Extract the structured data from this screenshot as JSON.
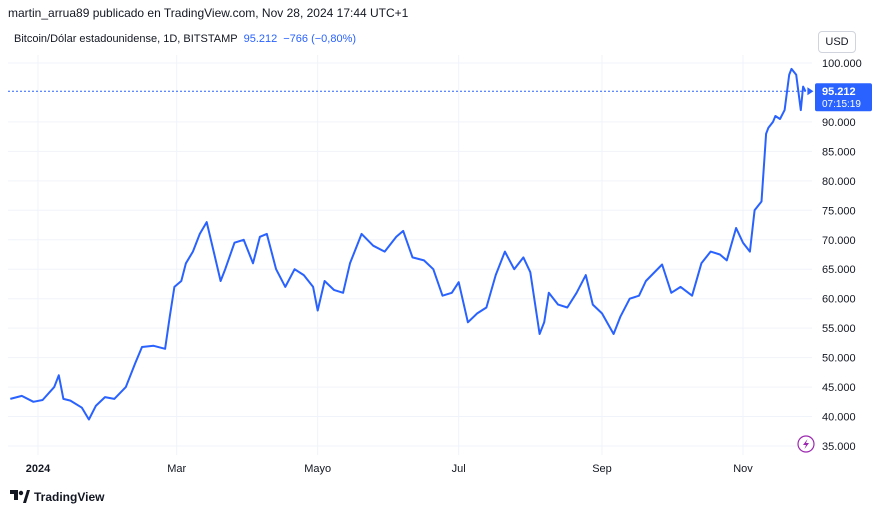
{
  "header": {
    "publisher": "martin_arrua89 publicado en TradingView.com, Nov 28, 2024 17:44 UTC+1"
  },
  "symbol": {
    "name": "Bitcoin/Dólar estadounidense, 1D, BITSTAMP",
    "price": "95.212",
    "change": "−766 (−0,80%)"
  },
  "currency_button": "USD",
  "price_badge": {
    "price": "95.212",
    "countdown": "07:15:19"
  },
  "footer": {
    "brand": "TradingView"
  },
  "colors": {
    "line": "#2962ff",
    "grid": "#f0f3fa",
    "text": "#131722",
    "event_icon": "#9c27b0"
  },
  "icons": {
    "event": "lightning-icon",
    "brand": "tradingview-logo"
  },
  "chart_data": {
    "type": "line",
    "title": "Bitcoin/Dólar estadounidense, 1D, BITSTAMP",
    "xlabel": "",
    "ylabel": "",
    "ylim": [
      33500,
      104000
    ],
    "grid": true,
    "x_ticks": [
      {
        "label": "2024",
        "date": "2024-01-01"
      },
      {
        "label": "Mar",
        "date": "2024-03-01"
      },
      {
        "label": "Mayo",
        "date": "2024-05-01"
      },
      {
        "label": "Jul",
        "date": "2024-07-01"
      },
      {
        "label": "Sep",
        "date": "2024-09-01"
      },
      {
        "label": "Nov",
        "date": "2024-11-01"
      }
    ],
    "y_ticks": [
      {
        "label": "35.000",
        "value": 35000
      },
      {
        "label": "40.000",
        "value": 40000
      },
      {
        "label": "45.000",
        "value": 45000
      },
      {
        "label": "50.000",
        "value": 50000
      },
      {
        "label": "55.000",
        "value": 55000
      },
      {
        "label": "60.000",
        "value": 60000
      },
      {
        "label": "65.000",
        "value": 65000
      },
      {
        "label": "70.000",
        "value": 70000
      },
      {
        "label": "75.000",
        "value": 75000
      },
      {
        "label": "80.000",
        "value": 80000
      },
      {
        "label": "85.000",
        "value": 85000
      },
      {
        "label": "90.000",
        "value": 90000
      },
      {
        "label": "100.000",
        "value": 100000
      }
    ],
    "last_price": 95212,
    "series": [
      {
        "points": [
          [
            "2023-12-20",
            43000
          ],
          [
            "2023-12-25",
            43500
          ],
          [
            "2023-12-30",
            42500
          ],
          [
            "2024-01-03",
            42800
          ],
          [
            "2024-01-08",
            45000
          ],
          [
            "2024-01-10",
            47000
          ],
          [
            "2024-01-12",
            43000
          ],
          [
            "2024-01-15",
            42700
          ],
          [
            "2024-01-20",
            41500
          ],
          [
            "2024-01-23",
            39500
          ],
          [
            "2024-01-26",
            41800
          ],
          [
            "2024-01-30",
            43300
          ],
          [
            "2024-02-03",
            43000
          ],
          [
            "2024-02-08",
            45000
          ],
          [
            "2024-02-12",
            49000
          ],
          [
            "2024-02-15",
            51800
          ],
          [
            "2024-02-20",
            52000
          ],
          [
            "2024-02-25",
            51500
          ],
          [
            "2024-02-27",
            57000
          ],
          [
            "2024-02-29",
            62000
          ],
          [
            "2024-03-03",
            63000
          ],
          [
            "2024-03-05",
            66000
          ],
          [
            "2024-03-08",
            68000
          ],
          [
            "2024-03-11",
            71000
          ],
          [
            "2024-03-14",
            73000
          ],
          [
            "2024-03-17",
            68000
          ],
          [
            "2024-03-20",
            63000
          ],
          [
            "2024-03-22",
            65000
          ],
          [
            "2024-03-26",
            69500
          ],
          [
            "2024-03-30",
            70000
          ],
          [
            "2024-04-03",
            66000
          ],
          [
            "2024-04-06",
            70500
          ],
          [
            "2024-04-09",
            71000
          ],
          [
            "2024-04-13",
            65000
          ],
          [
            "2024-04-17",
            62000
          ],
          [
            "2024-04-21",
            65000
          ],
          [
            "2024-04-25",
            64000
          ],
          [
            "2024-04-29",
            62000
          ],
          [
            "2024-05-01",
            58000
          ],
          [
            "2024-05-04",
            63000
          ],
          [
            "2024-05-08",
            61500
          ],
          [
            "2024-05-12",
            61000
          ],
          [
            "2024-05-15",
            66000
          ],
          [
            "2024-05-20",
            71000
          ],
          [
            "2024-05-25",
            69000
          ],
          [
            "2024-05-30",
            68000
          ],
          [
            "2024-06-04",
            70500
          ],
          [
            "2024-06-07",
            71500
          ],
          [
            "2024-06-11",
            67000
          ],
          [
            "2024-06-16",
            66500
          ],
          [
            "2024-06-20",
            65000
          ],
          [
            "2024-06-24",
            60500
          ],
          [
            "2024-06-28",
            61000
          ],
          [
            "2024-07-01",
            62800
          ],
          [
            "2024-07-05",
            56000
          ],
          [
            "2024-07-09",
            57500
          ],
          [
            "2024-07-13",
            58500
          ],
          [
            "2024-07-17",
            64000
          ],
          [
            "2024-07-21",
            68000
          ],
          [
            "2024-07-25",
            65000
          ],
          [
            "2024-07-29",
            67000
          ],
          [
            "2024-08-01",
            64500
          ],
          [
            "2024-08-05",
            54000
          ],
          [
            "2024-08-07",
            56000
          ],
          [
            "2024-08-09",
            61000
          ],
          [
            "2024-08-13",
            59000
          ],
          [
            "2024-08-17",
            58500
          ],
          [
            "2024-08-21",
            61000
          ],
          [
            "2024-08-25",
            64000
          ],
          [
            "2024-08-28",
            59000
          ],
          [
            "2024-09-01",
            57500
          ],
          [
            "2024-09-06",
            54000
          ],
          [
            "2024-09-09",
            57000
          ],
          [
            "2024-09-13",
            60000
          ],
          [
            "2024-09-17",
            60500
          ],
          [
            "2024-09-20",
            63000
          ],
          [
            "2024-09-27",
            65800
          ],
          [
            "2024-10-01",
            61000
          ],
          [
            "2024-10-05",
            62000
          ],
          [
            "2024-10-10",
            60500
          ],
          [
            "2024-10-14",
            66000
          ],
          [
            "2024-10-18",
            68000
          ],
          [
            "2024-10-22",
            67500
          ],
          [
            "2024-10-25",
            66500
          ],
          [
            "2024-10-29",
            72000
          ],
          [
            "2024-11-01",
            69500
          ],
          [
            "2024-11-04",
            68000
          ],
          [
            "2024-11-06",
            75000
          ],
          [
            "2024-11-09",
            76500
          ],
          [
            "2024-11-11",
            88000
          ],
          [
            "2024-11-12",
            89000
          ],
          [
            "2024-11-14",
            90000
          ],
          [
            "2024-11-15",
            91000
          ],
          [
            "2024-11-17",
            90500
          ],
          [
            "2024-11-19",
            92000
          ],
          [
            "2024-11-21",
            98000
          ],
          [
            "2024-11-22",
            99000
          ],
          [
            "2024-11-24",
            98000
          ],
          [
            "2024-11-26",
            92000
          ],
          [
            "2024-11-27",
            96000
          ],
          [
            "2024-11-28",
            95212
          ]
        ]
      }
    ]
  }
}
